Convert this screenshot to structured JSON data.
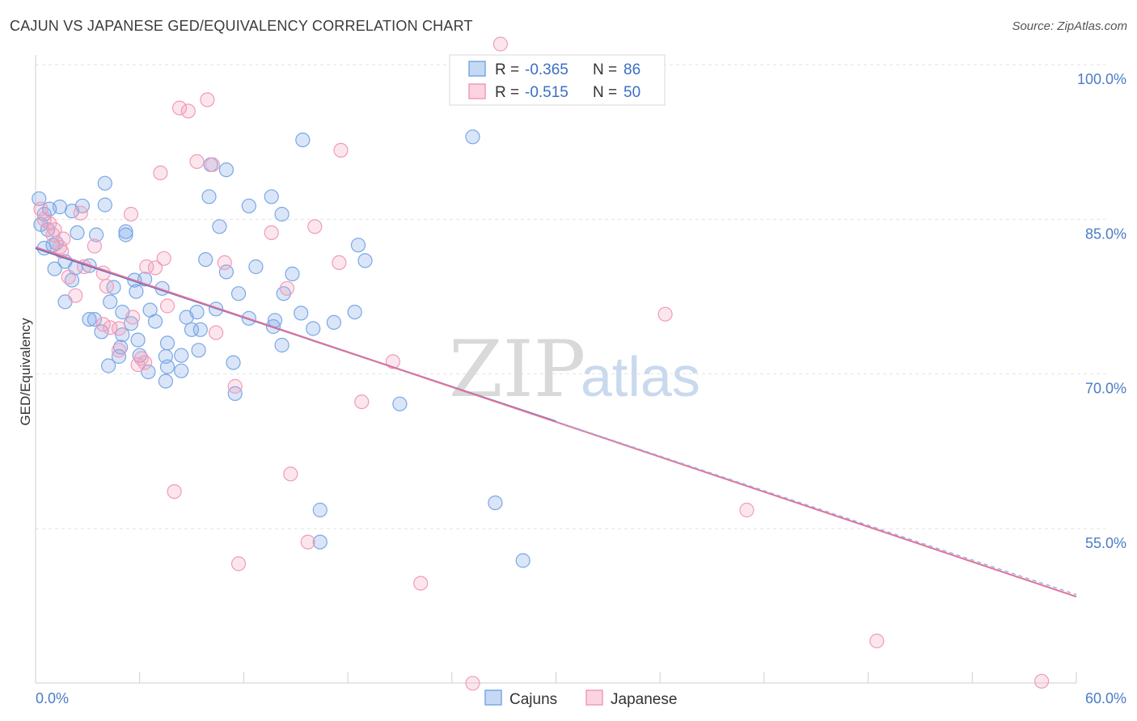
{
  "header": {
    "title": "CAJUN VS JAPANESE GED/EQUIVALENCY CORRELATION CHART",
    "source": "Source: ZipAtlas.com"
  },
  "watermark": {
    "zip": "ZIP",
    "atlas": "atlas"
  },
  "legend": {
    "rows": [
      {
        "r_label": "R =",
        "r_value": "-0.365",
        "n_label": "N =",
        "n_value": "86",
        "color": "#7aa7e6"
      },
      {
        "r_label": "R =",
        "r_value": "-0.515",
        "n_label": "N =",
        "n_value": "50",
        "color": "#f19bb8"
      }
    ]
  },
  "bottom_legend": [
    {
      "label": "Cajuns",
      "color": "#7aa7e6"
    },
    {
      "label": "Japanese",
      "color": "#f19bb8"
    }
  ],
  "chart_data": {
    "type": "scatter",
    "title": "CAJUN VS JAPANESE GED/EQUIVALENCY CORRELATION CHART",
    "xlabel": "",
    "ylabel": "GED/Equivalency",
    "xlim": [
      0,
      60
    ],
    "ylim": [
      40,
      102
    ],
    "x_tick_labels": [
      "0.0%",
      "60.0%"
    ],
    "y_ticks": [
      55,
      70,
      85,
      100
    ],
    "y_tick_labels": [
      "55.0%",
      "70.0%",
      "85.0%",
      "100.0%"
    ],
    "grid": true,
    "legend_position": "top-center",
    "series": [
      {
        "name": "Cajuns",
        "color": "#7aa7e6",
        "trend": {
          "x": [
            0,
            30
          ],
          "y": [
            82.2,
            65.4
          ]
        },
        "points": [
          [
            0.2,
            87.0
          ],
          [
            0.5,
            85.5
          ],
          [
            0.3,
            84.5
          ],
          [
            0.8,
            86.0
          ],
          [
            0.7,
            84.0
          ],
          [
            1.0,
            82.5
          ],
          [
            0.5,
            82.2
          ],
          [
            1.4,
            86.2
          ],
          [
            1.2,
            82.7
          ],
          [
            2.1,
            85.8
          ],
          [
            2.7,
            86.3
          ],
          [
            2.4,
            83.7
          ],
          [
            1.1,
            80.2
          ],
          [
            1.7,
            80.9
          ],
          [
            2.3,
            80.3
          ],
          [
            2.1,
            79.1
          ],
          [
            3.1,
            80.5
          ],
          [
            3.5,
            83.5
          ],
          [
            4.0,
            88.5
          ],
          [
            4.0,
            86.4
          ],
          [
            5.2,
            83.8
          ],
          [
            5.2,
            83.5
          ],
          [
            5.7,
            79.1
          ],
          [
            4.5,
            78.4
          ],
          [
            6.3,
            79.2
          ],
          [
            5.8,
            78.0
          ],
          [
            5.0,
            76.0
          ],
          [
            4.3,
            77.0
          ],
          [
            1.7,
            77.0
          ],
          [
            3.1,
            75.3
          ],
          [
            3.4,
            75.3
          ],
          [
            5.5,
            74.9
          ],
          [
            5.0,
            73.8
          ],
          [
            5.9,
            73.3
          ],
          [
            3.8,
            74.1
          ],
          [
            4.2,
            70.8
          ],
          [
            4.8,
            71.7
          ],
          [
            6.0,
            71.8
          ],
          [
            6.5,
            70.2
          ],
          [
            4.9,
            72.6
          ],
          [
            6.6,
            76.2
          ],
          [
            7.3,
            78.3
          ],
          [
            6.9,
            75.1
          ],
          [
            7.6,
            73.0
          ],
          [
            7.5,
            71.7
          ],
          [
            7.6,
            70.7
          ],
          [
            7.5,
            69.3
          ],
          [
            8.4,
            71.8
          ],
          [
            8.4,
            70.3
          ],
          [
            9.3,
            76.0
          ],
          [
            8.7,
            75.5
          ],
          [
            9.0,
            74.3
          ],
          [
            9.5,
            74.3
          ],
          [
            9.4,
            72.3
          ],
          [
            9.8,
            81.1
          ],
          [
            10.4,
            76.3
          ],
          [
            10.6,
            84.3
          ],
          [
            10.0,
            87.2
          ],
          [
            10.1,
            90.3
          ],
          [
            11.0,
            89.8
          ],
          [
            11.0,
            79.9
          ],
          [
            11.7,
            77.8
          ],
          [
            12.3,
            86.3
          ],
          [
            12.3,
            75.4
          ],
          [
            12.7,
            80.4
          ],
          [
            11.4,
            71.1
          ],
          [
            11.5,
            68.1
          ],
          [
            13.6,
            87.2
          ],
          [
            14.2,
            85.5
          ],
          [
            14.8,
            79.7
          ],
          [
            14.3,
            77.8
          ],
          [
            13.8,
            75.2
          ],
          [
            13.7,
            74.6
          ],
          [
            14.2,
            72.8
          ],
          [
            15.3,
            75.9
          ],
          [
            15.4,
            92.7
          ],
          [
            16.0,
            74.4
          ],
          [
            16.4,
            56.8
          ],
          [
            16.4,
            53.7
          ],
          [
            17.2,
            75.0
          ],
          [
            18.4,
            76.0
          ],
          [
            18.6,
            82.5
          ],
          [
            19.0,
            81.0
          ],
          [
            21.0,
            67.1
          ],
          [
            25.2,
            93.0
          ],
          [
            26.5,
            57.5
          ],
          [
            28.1,
            51.9
          ]
        ]
      },
      {
        "name": "Japanese",
        "color": "#f19bb8",
        "trend": {
          "x": [
            0,
            60
          ],
          "y": [
            82.3,
            48.4
          ]
        },
        "points": [
          [
            0.3,
            86.0
          ],
          [
            0.5,
            85.0
          ],
          [
            0.8,
            84.6
          ],
          [
            1.1,
            84.0
          ],
          [
            1.0,
            83.5
          ],
          [
            1.4,
            82.3
          ],
          [
            1.6,
            83.1
          ],
          [
            1.5,
            81.9
          ],
          [
            1.9,
            79.4
          ],
          [
            2.6,
            85.6
          ],
          [
            3.4,
            82.4
          ],
          [
            3.9,
            79.8
          ],
          [
            2.8,
            80.4
          ],
          [
            2.3,
            77.6
          ],
          [
            4.1,
            78.5
          ],
          [
            3.9,
            74.8
          ],
          [
            4.3,
            74.5
          ],
          [
            4.8,
            74.4
          ],
          [
            4.8,
            72.3
          ],
          [
            5.6,
            75.5
          ],
          [
            5.9,
            70.9
          ],
          [
            6.1,
            71.5
          ],
          [
            6.3,
            71.1
          ],
          [
            5.5,
            85.5
          ],
          [
            6.4,
            80.4
          ],
          [
            6.9,
            80.3
          ],
          [
            7.4,
            81.2
          ],
          [
            7.6,
            76.6
          ],
          [
            7.2,
            89.5
          ],
          [
            8.0,
            58.6
          ],
          [
            8.3,
            95.8
          ],
          [
            8.8,
            95.5
          ],
          [
            9.3,
            90.6
          ],
          [
            9.9,
            96.6
          ],
          [
            10.2,
            90.3
          ],
          [
            10.4,
            74.0
          ],
          [
            10.9,
            80.8
          ],
          [
            11.5,
            68.8
          ],
          [
            11.7,
            51.6
          ],
          [
            13.6,
            83.7
          ],
          [
            14.5,
            78.3
          ],
          [
            14.7,
            60.3
          ],
          [
            15.7,
            53.7
          ],
          [
            16.1,
            84.3
          ],
          [
            17.5,
            80.8
          ],
          [
            17.6,
            91.7
          ],
          [
            18.8,
            67.3
          ],
          [
            20.6,
            71.2
          ],
          [
            22.2,
            49.7
          ],
          [
            25.2,
            40.0
          ],
          [
            26.8,
            102.0
          ],
          [
            36.3,
            75.8
          ],
          [
            41.0,
            56.8
          ],
          [
            48.5,
            44.1
          ],
          [
            58.0,
            40.2
          ]
        ]
      }
    ]
  }
}
